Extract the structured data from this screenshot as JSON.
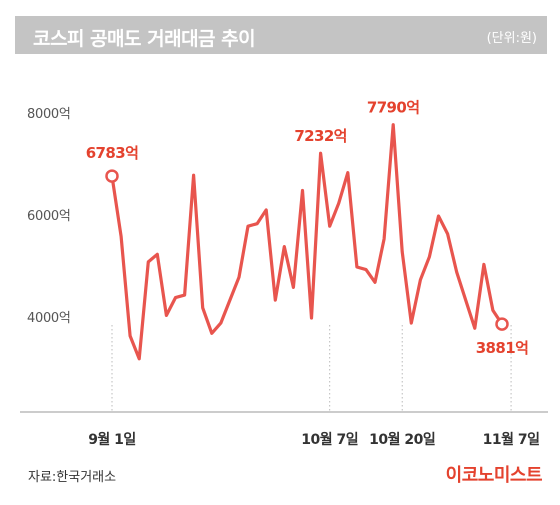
{
  "header": {
    "title": "코스피 공매도 거래대금 추이",
    "unit": "(단위:원)"
  },
  "footer": {
    "source": "자료:한국거래소",
    "brand": "이코노미스트"
  },
  "colors": {
    "line": "#e8554e",
    "label": "#e4422e",
    "title_bar": "#c4c4c4",
    "grid": "#e2e2e2"
  },
  "chart_data": {
    "type": "line",
    "title": "코스피 공매도 거래대금 추이",
    "unit": "(단위:원)",
    "ylim": [
      2000,
      8500
    ],
    "yticks": [
      {
        "value": 4000,
        "label": "4000억"
      },
      {
        "value": 6000,
        "label": "6000억"
      },
      {
        "value": 8000,
        "label": "8000억"
      }
    ],
    "grid": false,
    "xticks": [
      {
        "index": 0,
        "label": "9월 1일"
      },
      {
        "index": 24,
        "label": "10월 7일"
      },
      {
        "index": 32,
        "label": "10월 20일"
      },
      {
        "index": 44,
        "label": "11월 7일"
      }
    ],
    "series": [
      {
        "values": [
          6783,
          5600,
          3650,
          3200,
          5100,
          5250,
          4050,
          4400,
          4450,
          6800,
          4200,
          3700,
          3900,
          4350,
          4800,
          5800,
          5850,
          6120,
          4350,
          5400,
          4600,
          6500,
          4000,
          7232,
          5800,
          6250,
          6850,
          5000,
          4950,
          4700,
          5550,
          7790,
          5300,
          3900,
          4750,
          5200,
          6000,
          5650,
          4900,
          4350,
          3800,
          5050,
          4150,
          3881
        ]
      }
    ],
    "annotations": [
      {
        "index": 0,
        "label": "6783억"
      },
      {
        "index": 23,
        "label": "7232억"
      },
      {
        "index": 31,
        "label": "7790억"
      },
      {
        "index": 43,
        "label": "3881억"
      }
    ]
  }
}
